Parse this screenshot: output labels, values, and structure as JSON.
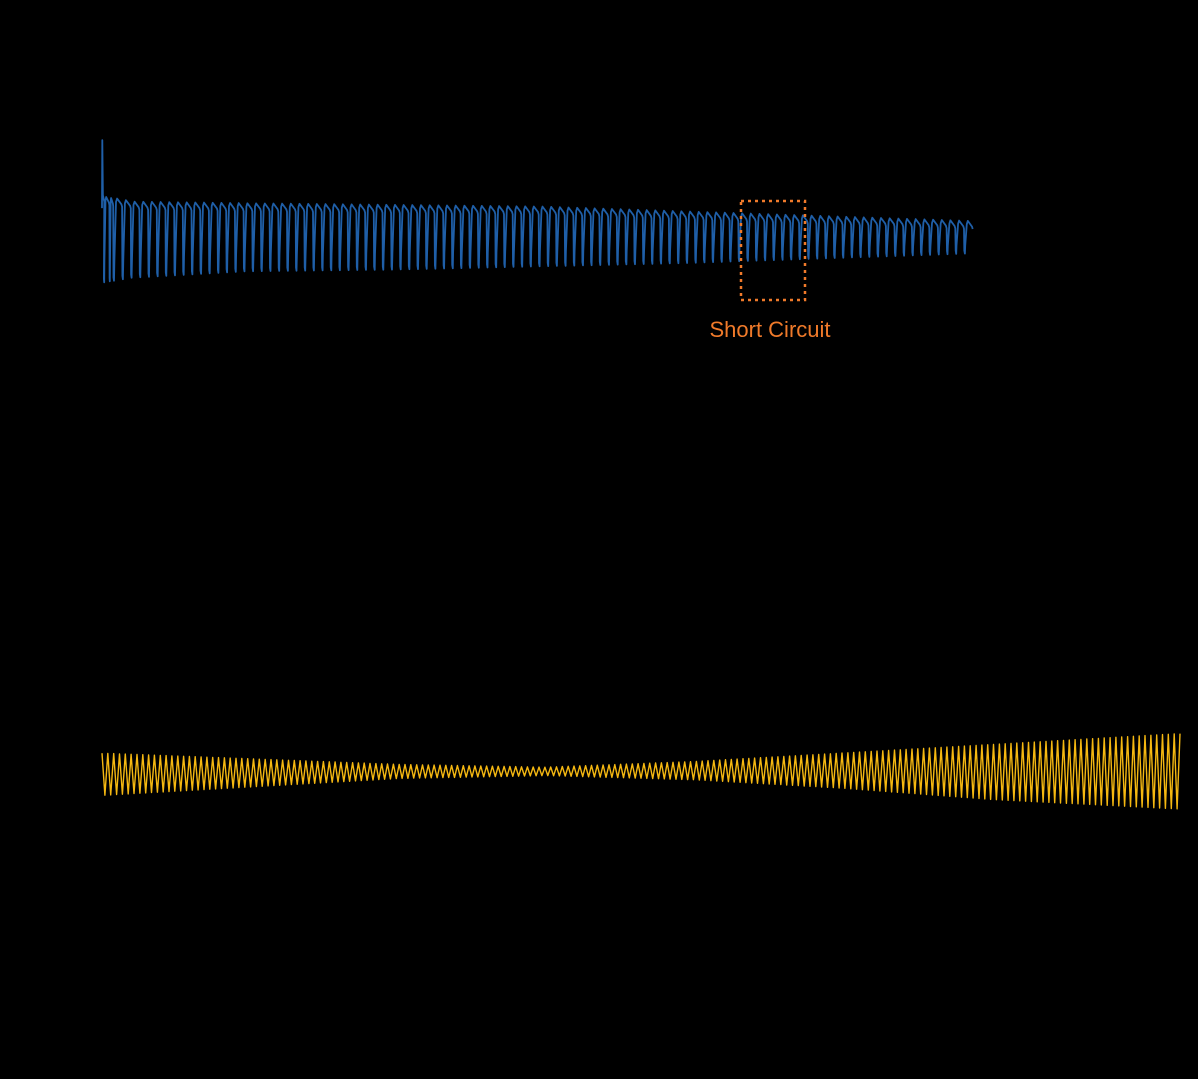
{
  "chart_data": [
    {
      "type": "line",
      "panel": "top",
      "color": "#1f5fa8",
      "background": "#000000",
      "grid": false,
      "annotations": [
        {
          "text": "Short Circuit",
          "color": "#f07a2a",
          "style": "dotted-box"
        }
      ],
      "series": [
        {
          "shape": "cyclic-voltage",
          "cycle_starts": [
            0.6,
            2.6,
            3.9,
            7.0,
            10.0,
            13.0,
            16.0,
            19.0,
            22.0,
            25.0,
            28.0,
            31.0,
            34.0,
            37.0,
            40.0,
            43.0,
            46.0,
            49.0,
            52.0,
            55.0,
            58.0,
            61.0,
            64.0,
            67.0,
            70.0,
            73.0,
            76.0,
            79.0,
            82.0,
            85.0,
            88.0,
            91.0,
            94.0,
            97.0,
            100.0,
            103.0,
            106.0,
            109.0,
            112.0,
            115.0,
            118.0,
            121.0,
            124.0,
            127.0,
            130.0,
            133.0,
            136.0,
            139.0,
            142.0,
            145.0,
            148.0,
            151.0,
            154.0,
            157.0,
            160.0,
            163.0,
            166.0,
            169.0,
            172.0,
            175.0,
            178.0,
            181.0,
            184.0,
            187.0,
            190.0,
            193.0,
            196.0,
            199.0,
            202.0,
            205.0,
            208.0,
            211.0,
            214.0,
            217.0,
            220.0,
            223.0,
            226.0,
            229.0,
            232.0,
            235.0,
            238.0,
            241.0,
            244.0,
            247.0,
            250.0,
            253.0,
            256.0,
            259.0,
            262.0,
            265.0,
            268.0,
            271.0,
            274.0,
            277.0,
            280.0,
            283.0,
            286.0,
            289.0,
            292.0,
            295.0,
            298.0
          ],
          "upper_envelope": [
            [
              0,
              1.0
            ],
            [
              0.3,
              0.65
            ],
            [
              10,
              0.62
            ],
            [
              50,
              0.61
            ],
            [
              100,
              0.6
            ],
            [
              150,
              0.59
            ],
            [
              200,
              0.56
            ],
            [
              250,
              0.53
            ],
            [
              300,
              0.5
            ],
            [
              360,
              0.48
            ]
          ],
          "lower_envelope": [
            [
              0,
              0.12
            ],
            [
              10,
              0.15
            ],
            [
              50,
              0.19
            ],
            [
              100,
              0.2
            ],
            [
              150,
              0.22
            ],
            [
              200,
              0.24
            ],
            [
              250,
              0.27
            ],
            [
              300,
              0.3
            ],
            [
              360,
              0.32
            ]
          ]
        }
      ],
      "xlim": [
        0,
        365
      ],
      "ylim": [
        0,
        1.1
      ]
    },
    {
      "type": "line",
      "panel": "bottom",
      "color": "#f5b811",
      "background": "#000000",
      "grid": false,
      "series": [
        {
          "shape": "oscillation",
          "cycles": 185,
          "upper_envelope": [
            [
              0,
              0.62
            ],
            [
              50,
              0.58
            ],
            [
              100,
              0.54
            ],
            [
              150,
              0.52
            ],
            [
              200,
              0.56
            ],
            [
              250,
              0.62
            ],
            [
              300,
              0.68
            ],
            [
              365,
              0.76
            ]
          ],
          "lower_envelope": [
            [
              0,
              0.32
            ],
            [
              50,
              0.38
            ],
            [
              100,
              0.44
            ],
            [
              150,
              0.46
            ],
            [
              200,
              0.43
            ],
            [
              250,
              0.37
            ],
            [
              300,
              0.29
            ],
            [
              365,
              0.22
            ]
          ]
        }
      ],
      "xlim": [
        0,
        365
      ],
      "ylim": [
        0,
        1
      ]
    }
  ]
}
